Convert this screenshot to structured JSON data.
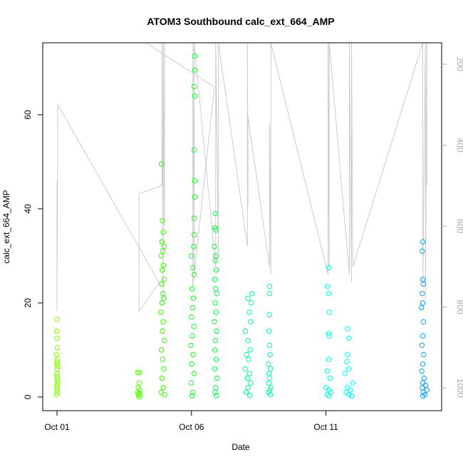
{
  "chart_data": {
    "type": "scatter",
    "title": "ATOM3 Southbound calc_ext_664_AMP",
    "x_label": "Date",
    "y_label": "calc_ext_664_AMP",
    "xlim": [
      0.47,
      15.3
    ],
    "xticks": [
      {
        "value": 1,
        "label": "Oct 01"
      },
      {
        "value": 6,
        "label": "Oct 06"
      },
      {
        "value": 11,
        "label": "Oct 11"
      }
    ],
    "ylim": [
      -2.9,
      75.3
    ],
    "yticks": [
      0,
      20,
      40,
      60
    ],
    "y2lim": [
      1056,
      147
    ],
    "y2ticks": [
      200,
      400,
      600,
      800,
      1000
    ],
    "y2_color": "#aaaaaa",
    "series": [
      {
        "color": "#80ff00",
        "x": [
          1.0,
          0.99,
          1.0,
          1.01,
          0.98,
          1.02,
          1.0,
          0.99,
          1.03,
          1.01,
          1.0,
          0.98,
          1.02,
          1.0,
          1.03,
          0.99,
          1.01,
          1.0,
          1.02,
          0.98
        ],
        "values": [
          16.5,
          14,
          12.5,
          10.5,
          9,
          8,
          7.5,
          7,
          6.5,
          6,
          5,
          4.5,
          4,
          3.5,
          3,
          2.5,
          2,
          1.5,
          1,
          0.5
        ]
      },
      {
        "color": "#50ff00",
        "x": [
          4.0,
          4.07,
          4.05,
          4.02,
          4.08,
          4.0,
          4.06,
          4.03,
          4.09,
          4.05
        ],
        "values": [
          5.2,
          5.2,
          3,
          2,
          1.5,
          1,
          0.8,
          0.5,
          0.3,
          0
        ]
      },
      {
        "color": "#33ff00",
        "x": [
          4.88,
          4.92,
          4.95,
          4.9,
          4.98,
          4.93,
          4.87,
          4.96,
          4.91,
          4.99,
          4.89,
          4.94,
          4.97,
          4.9,
          4.86,
          4.95,
          4.92,
          4.99,
          4.88,
          4.93,
          4.97,
          4.9,
          4.95,
          4.87,
          5.0
        ],
        "values": [
          49.5,
          37.5,
          35,
          33,
          32,
          31,
          30,
          28,
          27,
          25,
          24,
          22,
          21,
          20,
          18,
          16,
          14,
          12,
          10,
          8,
          6,
          4,
          2,
          1,
          0.5
        ]
      },
      {
        "color": "#11ff22",
        "x": [
          6.12,
          6.12,
          6.1,
          6.12,
          6.1,
          6.12,
          6.12,
          6.1,
          6.1,
          6.08,
          6.0,
          6.05,
          6.1,
          6.02,
          6.07,
          6.04,
          6.0,
          6.09,
          6.03,
          5.98,
          6.06,
          6.01,
          6.1,
          5.99,
          6.05,
          6.03
        ],
        "values": [
          72.5,
          69.5,
          66,
          64,
          52.5,
          46,
          42.5,
          38,
          34.5,
          32,
          30,
          27.5,
          26,
          23,
          21,
          19,
          17,
          15,
          13,
          11,
          9,
          7,
          5,
          3,
          1,
          0.3
        ]
      },
      {
        "color": "#00ff44",
        "x": [
          6.88,
          6.87,
          6.9,
          6.85,
          6.9,
          6.88,
          6.92,
          6.86,
          6.9,
          6.94,
          6.88,
          6.91,
          6.85,
          6.93,
          6.89,
          6.87,
          6.92,
          6.86,
          6.95,
          6.9,
          6.88,
          6.93
        ],
        "values": [
          39,
          36,
          35.5,
          32,
          30,
          29,
          27,
          25,
          23,
          22,
          20,
          18,
          16,
          14,
          12,
          10,
          8,
          6,
          4,
          2,
          1,
          0.3
        ]
      },
      {
        "color": "#00ff88",
        "x": [
          8.25,
          8.1,
          8.22,
          8.15,
          8.2,
          8.0,
          8.1,
          8.18,
          8.05,
          8.12,
          8.0,
          8.15,
          8.08,
          8.2,
          8.1,
          8.03,
          8.17
        ],
        "values": [
          22,
          21,
          20,
          18,
          16,
          14,
          12,
          10,
          9,
          8,
          6,
          5,
          4,
          3,
          2,
          1,
          0.3
        ]
      },
      {
        "color": "#00ffaa",
        "x": [
          8.9,
          8.9,
          8.9,
          8.88,
          8.9,
          8.92,
          8.86,
          8.94,
          8.88,
          8.91,
          8.87,
          8.95,
          8.9,
          8.86,
          8.93
        ],
        "values": [
          23.5,
          22,
          17.5,
          14,
          11,
          9,
          7,
          6,
          5,
          4,
          3,
          2,
          1.5,
          1,
          0.5
        ]
      },
      {
        "color": "#00ffdd",
        "x": [
          11.1,
          11.05,
          11.1,
          11.12,
          11.1,
          11.12,
          11.1,
          11.05,
          11.15,
          11.0,
          11.1,
          11.18,
          11.05,
          11.12
        ],
        "values": [
          27.5,
          23.5,
          22,
          18,
          13.5,
          13,
          8,
          5.5,
          4,
          2,
          1.5,
          1,
          0.5,
          0.2
        ]
      },
      {
        "color": "#00ffff",
        "x": [
          11.8,
          11.85,
          11.8,
          11.78,
          11.85,
          11.7,
          12.0,
          11.8,
          11.9,
          11.75,
          11.85,
          11.95
        ],
        "values": [
          14.5,
          12.5,
          9,
          7.5,
          6,
          5,
          3,
          2,
          1.5,
          1,
          0.5,
          0.2
        ]
      },
      {
        "color": "#0aa0ff",
        "x": [
          14.6,
          14.58,
          14.6,
          14.62,
          14.58,
          14.6,
          14.55,
          14.62,
          14.6,
          14.57,
          14.63,
          14.6,
          14.56,
          14.65,
          14.6,
          14.7,
          14.58,
          14.75,
          14.62,
          14.68,
          14.6
        ],
        "values": [
          33,
          31,
          25,
          24,
          22,
          20,
          19,
          16,
          13,
          11,
          9,
          7,
          5.5,
          4,
          3,
          2.5,
          2,
          1.5,
          1,
          0.5,
          0.2
        ]
      },
      {
        "type": "line",
        "axis": "y2",
        "color": "#cccccc",
        "x": [
          1.0,
          1.0,
          1.03,
          4.8,
          4.05,
          4.05,
          4.9,
          4.9,
          4.95,
          4.95,
          5.0,
          5.0,
          4.3,
          6.85,
          6.05,
          6.05,
          6.1,
          6.1,
          6.9,
          6.9,
          7.0,
          7.0,
          8.08,
          8.08,
          8.1,
          8.1,
          8.9,
          8.9,
          8.95,
          8.95,
          11.08,
          11.08,
          11.12,
          11.12,
          11.87,
          11.87,
          11.95,
          11.95,
          12.0,
          14.6,
          14.6,
          14.7,
          14.7,
          14.75,
          14.75
        ],
        "values": [
          490,
          810,
          300,
          740,
          810,
          520,
          500,
          147,
          780,
          147,
          600,
          147,
          147,
          256,
          750,
          147,
          720,
          147,
          700,
          147,
          680,
          147,
          650,
          147,
          550,
          330,
          700,
          350,
          720,
          147,
          720,
          147,
          700,
          147,
          720,
          147,
          740,
          147,
          700,
          147,
          740,
          147,
          780,
          147,
          500
        ]
      }
    ]
  }
}
